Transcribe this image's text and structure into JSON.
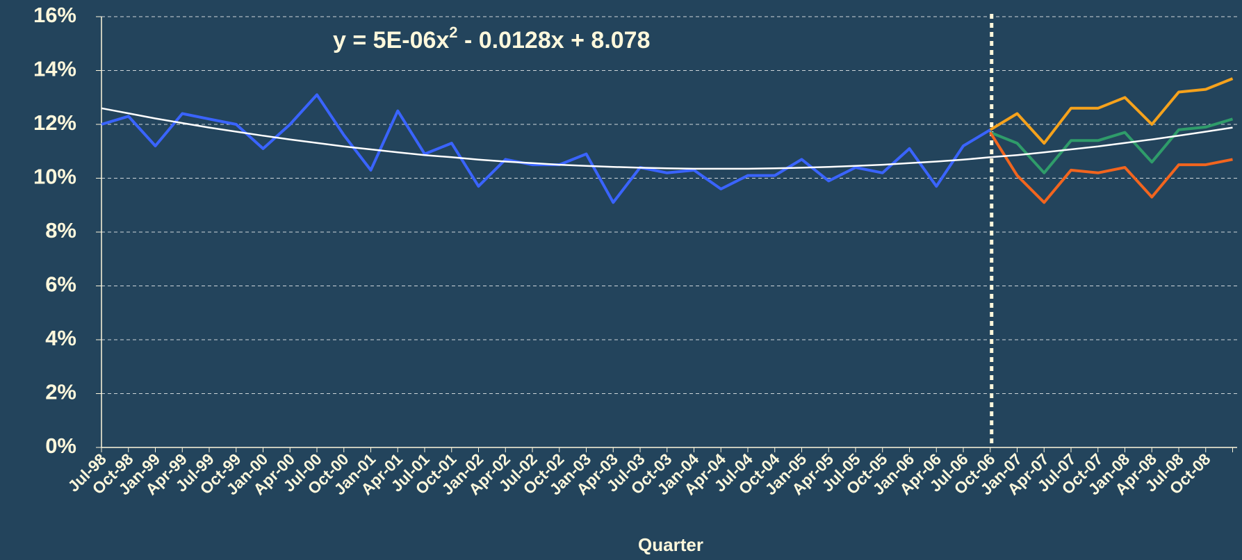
{
  "chart_data": {
    "type": "line",
    "annotation": [
      "y = 5E-06x",
      "2",
      " - 0.0128x + 8.078"
    ],
    "x_label": "Quarter",
    "categories": [
      "Jul-98",
      "Oct-98",
      "Jan-99",
      "Apr-99",
      "Jul-99",
      "Oct-99",
      "Jan-00",
      "Apr-00",
      "Jul-00",
      "Oct-00",
      "Jan-01",
      "Apr-01",
      "Jul-01",
      "Oct-01",
      "Jan-02",
      "Apr-02",
      "Jul-02",
      "Oct-02",
      "Jan-03",
      "Apr-03",
      "Jul-03",
      "Oct-03",
      "Jan-04",
      "Apr-04",
      "Jul-04",
      "Oct-04",
      "Jan-05",
      "Apr-05",
      "Jul-05",
      "Oct-05",
      "Jan-06",
      "Apr-06",
      "Jul-06",
      "Oct-06",
      "Jan-07",
      "Apr-07",
      "Jul-07",
      "Oct-07",
      "Jan-08",
      "Apr-08",
      "Jul-08",
      "Oct-08",
      null
    ],
    "series": [
      {
        "color": "#3a64ff",
        "values": [
          12.0,
          12.3,
          11.2,
          12.4,
          12.2,
          12.0,
          11.1,
          12.0,
          13.1,
          11.6,
          10.3,
          12.5,
          10.9,
          11.3,
          9.7,
          10.7,
          10.5,
          10.5,
          10.9,
          9.1,
          10.4,
          10.2,
          10.3,
          9.6,
          10.1,
          10.1,
          10.7,
          9.9,
          10.4,
          10.2,
          11.1,
          9.7,
          11.2,
          11.8,
          null,
          null,
          null,
          null,
          null,
          null,
          null,
          null,
          null
        ]
      },
      {
        "color": "#f5a21c",
        "values": [
          null,
          null,
          null,
          null,
          null,
          null,
          null,
          null,
          null,
          null,
          null,
          null,
          null,
          null,
          null,
          null,
          null,
          null,
          null,
          null,
          null,
          null,
          null,
          null,
          null,
          null,
          null,
          null,
          null,
          null,
          null,
          null,
          null,
          11.8,
          12.4,
          11.3,
          12.6,
          12.6,
          13.0,
          12.0,
          13.2,
          13.3,
          13.7
        ]
      },
      {
        "color": "#2f9c6a",
        "values": [
          null,
          null,
          null,
          null,
          null,
          null,
          null,
          null,
          null,
          null,
          null,
          null,
          null,
          null,
          null,
          null,
          null,
          null,
          null,
          null,
          null,
          null,
          null,
          null,
          null,
          null,
          null,
          null,
          null,
          null,
          null,
          null,
          null,
          11.7,
          11.3,
          10.2,
          11.4,
          11.4,
          11.7,
          10.6,
          11.8,
          11.9,
          12.2
        ]
      },
      {
        "color": "#f2651e",
        "values": [
          null,
          null,
          null,
          null,
          null,
          null,
          null,
          null,
          null,
          null,
          null,
          null,
          null,
          null,
          null,
          null,
          null,
          null,
          null,
          null,
          null,
          null,
          null,
          null,
          null,
          null,
          null,
          null,
          null,
          null,
          null,
          null,
          null,
          11.7,
          10.1,
          9.1,
          10.3,
          10.2,
          10.4,
          9.3,
          10.5,
          10.5,
          10.7
        ]
      },
      {
        "color": "#ffffff",
        "values": [
          12.6,
          12.41,
          12.22,
          12.05,
          11.88,
          11.73,
          11.58,
          11.44,
          11.31,
          11.18,
          11.07,
          10.96,
          10.86,
          10.78,
          10.69,
          10.62,
          10.56,
          10.5,
          10.46,
          10.42,
          10.39,
          10.37,
          10.35,
          10.35,
          10.35,
          10.37,
          10.39,
          10.42,
          10.46,
          10.5,
          10.56,
          10.62,
          10.69,
          10.78,
          10.86,
          10.96,
          11.07,
          11.18,
          11.31,
          11.44,
          11.58,
          11.73,
          11.88
        ]
      }
    ],
    "ylim": [
      0,
      16
    ],
    "yticks": [
      {
        "value": 0,
        "label": "0%"
      },
      {
        "value": 2,
        "label": "2%"
      },
      {
        "value": 4,
        "label": "4%"
      },
      {
        "value": 6,
        "label": "6%"
      },
      {
        "value": 8,
        "label": "8%"
      },
      {
        "value": 10,
        "label": "10%"
      },
      {
        "value": 12,
        "label": "12%"
      },
      {
        "value": 14,
        "label": "14%"
      },
      {
        "value": 16,
        "label": "16%"
      }
    ],
    "grid": true
  }
}
